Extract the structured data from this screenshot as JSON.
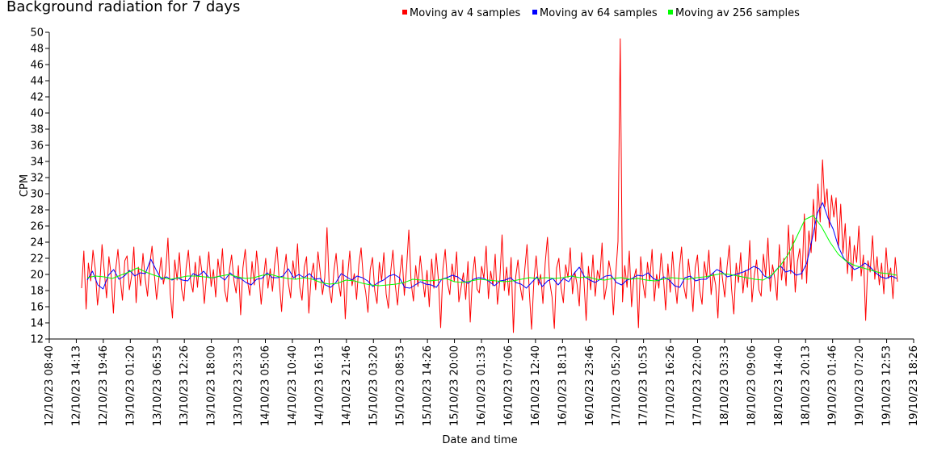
{
  "chart_data": {
    "type": "line",
    "title": "Background radiation for 7 days",
    "xlabel": "Date and time",
    "ylabel": "CPM",
    "ylim": [
      12,
      50
    ],
    "y_ticks": [
      12,
      14,
      16,
      18,
      20,
      22,
      24,
      26,
      28,
      30,
      32,
      34,
      36,
      38,
      40,
      42,
      44,
      46,
      48,
      50
    ],
    "x_ticks": [
      "12/10/23 08:40",
      "12/10/23 14:13",
      "12/10/23 19:46",
      "13/10/23 01:20",
      "13/10/23 06:53",
      "13/10/23 12:26",
      "13/10/23 18:00",
      "13/10/23 23:33",
      "14/10/23 05:06",
      "14/10/23 10:40",
      "14/10/23 16:13",
      "14/10/23 21:46",
      "15/10/23 03:20",
      "15/10/23 08:53",
      "15/10/23 14:26",
      "15/10/23 20:00",
      "16/10/23 01:33",
      "16/10/23 07:06",
      "16/10/23 12:40",
      "16/10/23 18:13",
      "16/10/23 23:46",
      "17/10/23 05:20",
      "17/10/23 10:53",
      "17/10/23 16:26",
      "17/10/23 22:00",
      "18/10/23 03:33",
      "18/10/23 09:06",
      "18/10/23 14:40",
      "18/10/23 20:13",
      "19/10/23 01:46",
      "19/10/23 07:20",
      "19/10/23 12:53",
      "19/10/23 18:26"
    ],
    "grid": false,
    "legend_position": "top",
    "series": [
      {
        "name": "Moving av 4 samples",
        "color": "#ff0000",
        "values": [
          18.3,
          22.9,
          15.7,
          21.4,
          19.2,
          23.0,
          20.7,
          16.2,
          18.7,
          23.7,
          20.4,
          17.1,
          22.2,
          19.9,
          15.2,
          20.6,
          23.1,
          19.5,
          16.8,
          21.7,
          22.3,
          18.1,
          19.8,
          23.4,
          16.5,
          20.9,
          18.6,
          22.6,
          19.4,
          17.3,
          21.2,
          23.5,
          20.1,
          16.9,
          19.6,
          22.1,
          18.8,
          20.4,
          24.5,
          17.6,
          14.6,
          21.8,
          19.3,
          22.7,
          18.2,
          16.7,
          20.8,
          23.0,
          19.1,
          17.8,
          21.5,
          18.4,
          22.3,
          20.2,
          16.4,
          19.9,
          22.8,
          18.5,
          20.6,
          17.2,
          21.9,
          19.7,
          23.2,
          18.0,
          16.6,
          20.5,
          22.4,
          19.3,
          17.7,
          21.1,
          15.0,
          20.8,
          23.1,
          19.2,
          17.4,
          21.6,
          18.7,
          22.9,
          20.0,
          16.3,
          19.4,
          22.0,
          18.3,
          20.7,
          17.9,
          21.3,
          23.4,
          19.0,
          15.4,
          20.2,
          22.5,
          18.9,
          17.1,
          21.7,
          19.5,
          23.8,
          18.4,
          16.8,
          20.9,
          22.2,
          15.2,
          19.8,
          21.4,
          18.1,
          22.8,
          20.3,
          17.5,
          19.6,
          25.8,
          18.2,
          16.5,
          20.4,
          22.6,
          19.1,
          17.3,
          21.8,
          14.5,
          19.7,
          22.9,
          18.6,
          20.1,
          16.9,
          21.2,
          23.3,
          19.4,
          17.8,
          15.3,
          20.6,
          22.1,
          18.0,
          16.4,
          21.5,
          19.2,
          22.7,
          17.6,
          15.8,
          20.3,
          23.0,
          18.8,
          16.2,
          19.9,
          22.4,
          17.4,
          20.8,
          25.5,
          19.0,
          16.7,
          21.1,
          18.5,
          22.3,
          19.6,
          17.2,
          20.5,
          16.0,
          21.9,
          18.3,
          22.6,
          19.4,
          13.4,
          20.7,
          23.1,
          18.9,
          17.5,
          21.3,
          19.1,
          22.8,
          16.6,
          18.4,
          20.2,
          16.9,
          21.6,
          14.1,
          19.8,
          22.2,
          18.2,
          17.7,
          21.0,
          19.5,
          23.5,
          17.0,
          20.4,
          18.6,
          22.5,
          16.3,
          19.3,
          24.9,
          18.0,
          20.9,
          17.4,
          22.1,
          12.8,
          19.7,
          21.8,
          18.5,
          16.8,
          20.6,
          23.7,
          17.9,
          13.2,
          19.2,
          22.3,
          18.7,
          20.0,
          16.4,
          21.4,
          24.6,
          19.0,
          17.2,
          13.3,
          20.8,
          22.0,
          18.3,
          16.5,
          21.2,
          19.6,
          23.3,
          17.6,
          20.3,
          18.8,
          16.1,
          22.7,
          19.3,
          14.3,
          21.0,
          18.1,
          22.4,
          17.3,
          20.5,
          19.4,
          23.9,
          16.9,
          18.6,
          21.7,
          20.1,
          15.0,
          19.8,
          24.1,
          49.2,
          16.6,
          21.1,
          18.4,
          22.9,
          16.0,
          19.5,
          20.7,
          13.4,
          22.2,
          18.9,
          17.1,
          21.5,
          19.2,
          23.1,
          16.7,
          20.0,
          18.3,
          22.6,
          19.7,
          15.6,
          21.3,
          17.8,
          22.8,
          19.1,
          16.4,
          20.6,
          23.4,
          18.5,
          17.0,
          21.9,
          19.3,
          15.4,
          20.8,
          22.4,
          18.0,
          16.3,
          21.6,
          19.6,
          23.0,
          17.5,
          20.2,
          18.7,
          14.6,
          22.1,
          19.4,
          17.2,
          20.9,
          23.6,
          18.2,
          15.1,
          21.4,
          19.0,
          22.7,
          17.7,
          20.5,
          18.4,
          24.2,
          16.6,
          19.9,
          21.8,
          18.1,
          17.3,
          22.5,
          19.8,
          24.5,
          17.9,
          21.2,
          19.5,
          16.8,
          23.7,
          19.3,
          22.0,
          18.6,
          26.1,
          20.1,
          24.9,
          17.8,
          21.6,
          23.2,
          19.4,
          27.5,
          18.9,
          25.4,
          22.7,
          29.3,
          24.1,
          31.2,
          26.5,
          34.2,
          28.4,
          30.6,
          25.8,
          29.8,
          27.1,
          29.5,
          23.4,
          28.7,
          22.6,
          26.3,
          20.1,
          24.7,
          19.2,
          23.6,
          21.5,
          26.0,
          19.8,
          22.4,
          14.3,
          21.7,
          20.3,
          24.8,
          19.4,
          22.2,
          18.7,
          21.4,
          17.6,
          23.3,
          19.5,
          20.8,
          17.0,
          22.1,
          19.1
        ]
      },
      {
        "name": "Moving av 64 samples",
        "color": "#0000ff",
        "values": [
          19.3,
          20.4,
          18.7,
          18.2,
          19.9,
          20.6,
          19.4,
          19.8,
          20.5,
          19.8,
          20.2,
          20.1,
          21.9,
          20.6,
          19.4,
          19.7,
          19.3,
          19.6,
          19.3,
          19.2,
          20.1,
          19.8,
          20.4,
          19.6,
          19.6,
          19.8,
          19.3,
          20.2,
          19.6,
          19.5,
          19.0,
          18.7,
          19.4,
          19.5,
          20.2,
          19.6,
          19.6,
          19.8,
          20.7,
          19.6,
          20.0,
          19.6,
          20.1,
          19.4,
          19.5,
          18.7,
          18.4,
          19.0,
          20.1,
          19.7,
          19.3,
          19.8,
          19.6,
          19.2,
          18.5,
          19.0,
          19.3,
          19.8,
          20.0,
          19.6,
          18.4,
          18.3,
          18.7,
          19.1,
          18.8,
          18.7,
          18.4,
          19.4,
          19.6,
          19.9,
          19.7,
          19.2,
          18.9,
          19.4,
          19.6,
          19.5,
          19.1,
          18.6,
          19.2,
          19.3,
          19.6,
          19.0,
          18.8,
          18.3,
          19.0,
          19.7,
          18.5,
          19.2,
          19.5,
          18.7,
          19.5,
          19.1,
          20.1,
          20.9,
          19.7,
          19.3,
          19.0,
          19.4,
          19.8,
          19.9,
          19.0,
          18.7,
          19.3,
          19.5,
          19.9,
          19.8,
          20.2,
          19.5,
          19.2,
          19.7,
          19.3,
          18.6,
          18.4,
          19.6,
          19.8,
          19.2,
          19.4,
          19.4,
          20.0,
          20.6,
          20.3,
          19.7,
          19.9,
          20.1,
          20.3,
          20.6,
          21.0,
          20.7,
          19.8,
          19.5,
          20.4,
          21.1,
          20.3,
          20.5,
          19.9,
          20.1,
          21.4,
          24.3,
          27.6,
          28.9,
          27.0,
          25.6,
          23.4,
          22.0,
          21.3,
          20.6,
          20.9,
          21.4,
          20.9,
          20.2,
          19.7,
          19.5,
          19.8,
          19.5
        ]
      },
      {
        "name": "Moving av 256 samples",
        "color": "#00ff00",
        "values": [
          19.6,
          19.8,
          19.7,
          19.5,
          19.9,
          20.3,
          20.8,
          20.3,
          19.9,
          19.6,
          19.4,
          19.6,
          19.8,
          19.8,
          19.7,
          19.6,
          19.8,
          20.0,
          19.7,
          19.5,
          19.6,
          19.9,
          20.0,
          19.7,
          19.5,
          19.4,
          19.6,
          19.4,
          19.0,
          18.8,
          18.9,
          19.3,
          19.2,
          18.9,
          18.7,
          18.6,
          18.7,
          18.8,
          19.0,
          19.4,
          19.3,
          19.2,
          19.3,
          19.5,
          19.1,
          19.0,
          19.2,
          19.4,
          19.3,
          19.2,
          19.1,
          19.2,
          19.4,
          19.6,
          19.5,
          19.6,
          19.5,
          19.6,
          19.8,
          19.6,
          19.7,
          19.4,
          19.3,
          19.5,
          19.6,
          19.4,
          19.5,
          19.3,
          19.2,
          19.4,
          19.6,
          19.5,
          19.4,
          19.6,
          19.7,
          19.9,
          20.1,
          20.0,
          19.8,
          19.6,
          19.4,
          19.3,
          19.9,
          21.0,
          22.5,
          24.6,
          26.8,
          27.3,
          25.9,
          24.0,
          22.5,
          21.6,
          21.1,
          20.8,
          20.5,
          20.2,
          20.1,
          19.9
        ]
      }
    ]
  }
}
